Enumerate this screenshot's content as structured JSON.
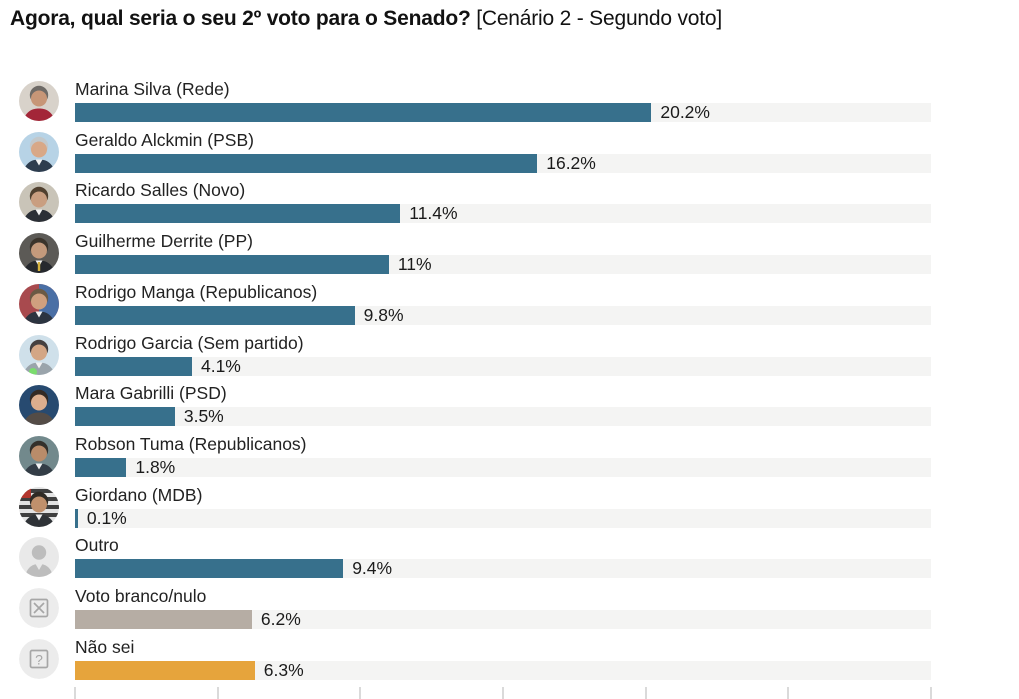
{
  "title": {
    "main": "Agora, qual seria o seu 2º voto para o Senado?",
    "suffix": " [Cenário 2 - Segundo voto]"
  },
  "colors": {
    "bar_default": "#37708C",
    "bar_blank_null": "#B6ADA4",
    "bar_dont_know": "#E6A43C",
    "track": "#F4F4F3",
    "tick": "#DADADA",
    "title_text": "#121212",
    "label_text": "#222222",
    "value_text": "#1B1B1B"
  },
  "axis": {
    "min": 0,
    "max": 30,
    "tick_interval": 5
  },
  "chart_data": {
    "type": "bar",
    "orientation": "horizontal",
    "title": "Agora, qual seria o seu 2º voto para o Senado? [Cenário 2 - Segundo voto]",
    "categories": [
      "Marina Silva (Rede)",
      "Geraldo Alckmin (PSB)",
      "Ricardo Salles (Novo)",
      "Guilherme Derrite (PP)",
      "Rodrigo Manga (Republicanos)",
      "Rodrigo Garcia (Sem partido)",
      "Mara Gabrilli (PSD)",
      "Robson Tuma (Republicanos)",
      "Giordano (MDB)",
      "Outro",
      "Voto branco/nulo",
      "Não sei"
    ],
    "values": [
      20.2,
      16.2,
      11.4,
      11,
      9.8,
      4.1,
      3.5,
      1.8,
      0.1,
      9.4,
      6.2,
      6.3
    ],
    "value_labels": [
      "20.2%",
      "16.2%",
      "11.4%",
      "11%",
      "9.8%",
      "4.1%",
      "3.5%",
      "1.8%",
      "0.1%",
      "9.4%",
      "6.2%",
      "6.3%"
    ],
    "bar_colors": [
      "#37708C",
      "#37708C",
      "#37708C",
      "#37708C",
      "#37708C",
      "#37708C",
      "#37708C",
      "#37708C",
      "#37708C",
      "#37708C",
      "#B6ADA4",
      "#E6A43C"
    ],
    "xlim": [
      0,
      30
    ],
    "x_tick_interval": 5,
    "grid": false,
    "legend": "none"
  },
  "rows": [
    {
      "id": "marina-silva",
      "label": "Marina Silva (Rede)",
      "value": 20.2,
      "value_label": "20.2%",
      "color": "#37708C",
      "avatar": {
        "kind": "person",
        "bg": "#D8D2CA",
        "hair": "#6E6A66",
        "skin": "#C79677",
        "clothes": "#A32638"
      }
    },
    {
      "id": "geraldo-alckmin",
      "label": "Geraldo Alckmin (PSB)",
      "value": 16.2,
      "value_label": "16.2%",
      "color": "#37708C",
      "avatar": {
        "kind": "person",
        "bg": "#B7D3E6",
        "hair": "#C2C8CB",
        "skin": "#D8A887",
        "clothes": "#2E3D4E",
        "shirt": true
      }
    },
    {
      "id": "ricardo-salles",
      "label": "Ricardo Salles (Novo)",
      "value": 11.4,
      "value_label": "11.4%",
      "color": "#37708C",
      "avatar": {
        "kind": "person",
        "bg": "#C9C4B8",
        "hair": "#50402F",
        "skin": "#C99E80",
        "clothes": "#2B2F36",
        "shirt": true
      }
    },
    {
      "id": "guilherme-derrite",
      "label": "Guilherme Derrite (PP)",
      "value": 11,
      "value_label": "11%",
      "color": "#37708C",
      "avatar": {
        "kind": "person",
        "bg": "#5C5A56",
        "hair": "#3B342B",
        "skin": "#C49A7C",
        "clothes": "#26292E",
        "shirt": true,
        "accent": "#D4B23E"
      }
    },
    {
      "id": "rodrigo-manga",
      "label": "Rodrigo Manga (Republicanos)",
      "value": 9.8,
      "value_label": "9.8%",
      "color": "#37708C",
      "avatar": {
        "kind": "person",
        "bg": "#A84A4E",
        "bg2": "#4A6FA5",
        "hair": "#6B5A44",
        "skin": "#CFA07F",
        "clothes": "#2C3440",
        "shirt": true
      }
    },
    {
      "id": "rodrigo-garcia",
      "label": "Rodrigo Garcia (Sem partido)",
      "value": 4.1,
      "value_label": "4.1%",
      "color": "#37708C",
      "avatar": {
        "kind": "person",
        "bg": "#CFE0EA",
        "hair": "#444040",
        "skin": "#D3A685",
        "clothes": "#9AA4AB",
        "shirt": true,
        "badge": "#7BDC6E"
      }
    },
    {
      "id": "mara-gabrilli",
      "label": "Mara Gabrilli (PSD)",
      "value": 3.5,
      "value_label": "3.5%",
      "color": "#37708C",
      "avatar": {
        "kind": "person",
        "bg": "#274A70",
        "hair": "#332A24",
        "skin": "#DCAE8E",
        "clothes": "#544C46"
      }
    },
    {
      "id": "robson-tuma",
      "label": "Robson Tuma (Republicanos)",
      "value": 1.8,
      "value_label": "1.8%",
      "color": "#37708C",
      "avatar": {
        "kind": "person",
        "bg": "#72898C",
        "hair": "#33302B",
        "skin": "#B98C6A",
        "clothes": "#333D46",
        "shirt": true
      }
    },
    {
      "id": "giordano",
      "label": "Giordano (MDB)",
      "value": 0.1,
      "value_label": "0.1%",
      "color": "#37708C",
      "avatar": {
        "kind": "person",
        "bg": "#E3E3E3",
        "flag": true,
        "hair": "#2F2A24",
        "skin": "#C0906C",
        "clothes": "#2F3337",
        "shirt": true
      }
    },
    {
      "id": "outro",
      "label": "Outro",
      "value": 9.4,
      "value_label": "9.4%",
      "color": "#37708C",
      "avatar": {
        "kind": "silhouette",
        "bg": "#E9E9E9",
        "fg": "#BDBDBD"
      }
    },
    {
      "id": "voto-branco-nulo",
      "label": "Voto branco/nulo",
      "value": 6.2,
      "value_label": "6.2%",
      "color": "#B6ADA4",
      "avatar": {
        "kind": "cancel",
        "bg": "#ECECEC",
        "fg": "#A6A6A6"
      }
    },
    {
      "id": "nao-sei",
      "label": "Não sei",
      "value": 6.3,
      "value_label": "6.3%",
      "color": "#E6A43C",
      "avatar": {
        "kind": "question",
        "bg": "#ECECEC",
        "fg": "#A6A6A6",
        "glyph": "?"
      }
    }
  ]
}
